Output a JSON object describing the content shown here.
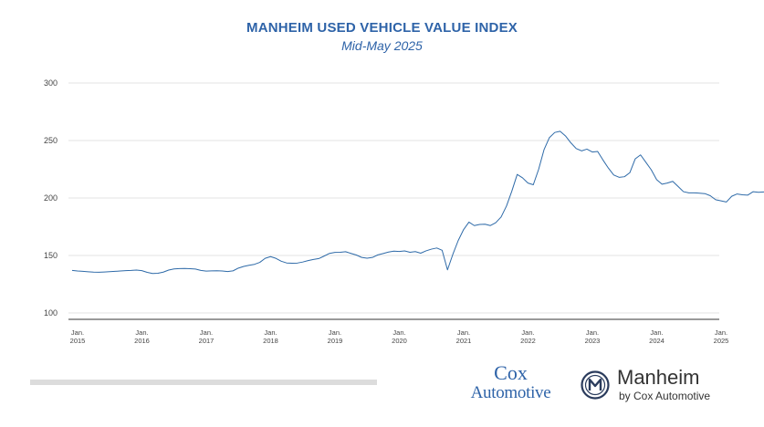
{
  "chart_data": {
    "type": "line",
    "title": "MANHEIM USED VEHICLE VALUE INDEX",
    "subtitle": "Mid-May 2025",
    "xlabel": "",
    "ylabel": "",
    "ylim": [
      100,
      300
    ],
    "yticks": [
      "100",
      "150",
      "200",
      "250",
      "300"
    ],
    "xticks": [
      {
        "line1": "Jan.",
        "line2": "2015"
      },
      {
        "line1": "Jan.",
        "line2": "2016"
      },
      {
        "line1": "Jan.",
        "line2": "2017"
      },
      {
        "line1": "Jan.",
        "line2": "2018"
      },
      {
        "line1": "Jan.",
        "line2": "2019"
      },
      {
        "line1": "Jan.",
        "line2": "2020"
      },
      {
        "line1": "Jan.",
        "line2": "2021"
      },
      {
        "line1": "Jan.",
        "line2": "2022"
      },
      {
        "line1": "Jan.",
        "line2": "2023"
      },
      {
        "line1": "Jan.",
        "line2": "2024"
      },
      {
        "line1": "Jan.",
        "line2": "2025"
      }
    ],
    "grid": true,
    "line_color": "#2e6aa8",
    "end_label": "205.9",
    "series": [
      {
        "x_start": "2015-01",
        "frequency": "monthly",
        "values": [
          137.0,
          136.5,
          136.2,
          135.8,
          135.5,
          135.4,
          135.6,
          135.9,
          136.2,
          136.5,
          136.8,
          137.0,
          137.3,
          136.8,
          135.3,
          134.3,
          134.5,
          135.5,
          137.3,
          138.3,
          138.6,
          138.7,
          138.5,
          138.2,
          137.0,
          136.4,
          136.6,
          136.7,
          136.5,
          136.0,
          136.6,
          139.0,
          140.5,
          141.5,
          142.3,
          144.0,
          147.5,
          149.0,
          147.5,
          145.0,
          143.5,
          143.3,
          143.4,
          144.3,
          145.5,
          146.5,
          147.3,
          149.5,
          151.8,
          152.7,
          152.8,
          153.3,
          151.8,
          150.4,
          148.3,
          147.6,
          148.3,
          150.5,
          151.7,
          153.0,
          153.8,
          153.5,
          154.0,
          152.8,
          153.4,
          152.0,
          154.0,
          155.5,
          156.5,
          154.5,
          137.5,
          151.0,
          163.0,
          172.5,
          179.0,
          176.0,
          177.0,
          177.2,
          176.0,
          178.5,
          183.5,
          193.0,
          206.0,
          220.5,
          217.5,
          213.0,
          211.5,
          225.0,
          242.0,
          252.5,
          257.0,
          258.0,
          254.0,
          248.0,
          243.0,
          241.0,
          242.5,
          240.0,
          240.5,
          233.0,
          226.0,
          220.0,
          218.0,
          218.5,
          222.0,
          234.0,
          237.5,
          231.0,
          224.5,
          216.0,
          212.0,
          213.0,
          214.5,
          210.0,
          205.5,
          204.5,
          204.5,
          204.2,
          203.8,
          202.0,
          198.5,
          197.5,
          196.5,
          201.5,
          203.5,
          202.8,
          202.5,
          205.5,
          205.0,
          205.3,
          204.5,
          203.0,
          208.0,
          205.9
        ]
      }
    ]
  },
  "footer": {
    "cox_top": "Cox",
    "cox_bottom": "Automotive",
    "manheim_name": "Manheim",
    "manheim_sub": "by Cox Automotive"
  }
}
